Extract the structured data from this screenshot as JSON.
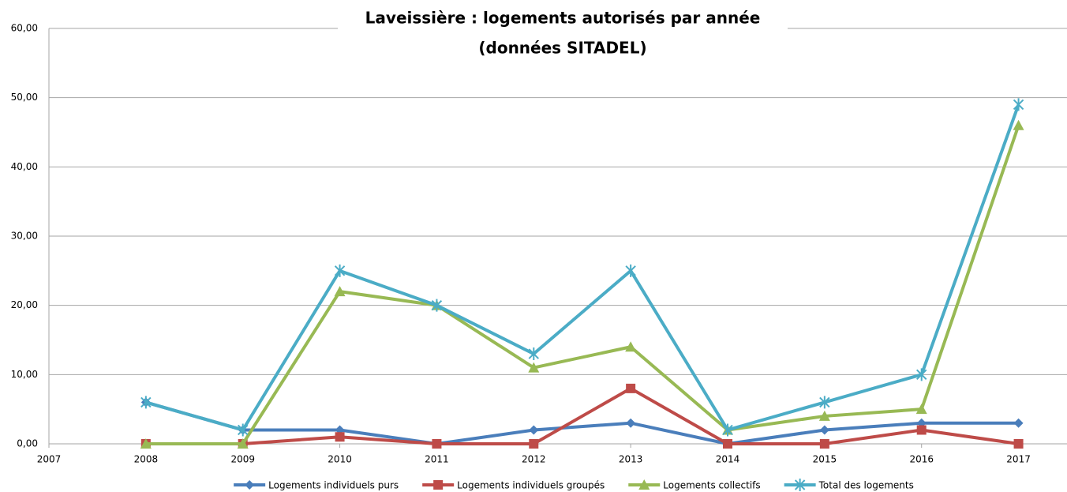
{
  "chart_data": {
    "type": "line",
    "title": [
      "Laveissière : logements autorisés par année",
      "(données SITADEL)"
    ],
    "x": [
      2008,
      2009,
      2010,
      2011,
      2012,
      2013,
      2014,
      2015,
      2016,
      2017
    ],
    "xlim": [
      2007,
      2017.5
    ],
    "xticks": [
      2007,
      2008,
      2009,
      2010,
      2011,
      2012,
      2013,
      2014,
      2015,
      2016,
      2017
    ],
    "ylim": [
      0,
      60
    ],
    "yticks": [
      {
        "value": 0,
        "label": "0,00"
      },
      {
        "value": 10,
        "label": "10,00"
      },
      {
        "value": 20,
        "label": "20,00"
      },
      {
        "value": 30,
        "label": "30,00"
      },
      {
        "value": 40,
        "label": "40,00"
      },
      {
        "value": 50,
        "label": "50,00"
      },
      {
        "value": 60,
        "label": "60,00"
      }
    ],
    "grid": true,
    "legend": "bottom",
    "series": [
      {
        "name": "Logements individuels purs",
        "color": "#4a7ebb",
        "marker": "diamond",
        "values": [
          6,
          2,
          2,
          0,
          2,
          3,
          0,
          2,
          3,
          3
        ]
      },
      {
        "name": "Logements individuels groupés",
        "color": "#be4b48",
        "marker": "square",
        "values": [
          0,
          0,
          1,
          0,
          0,
          8,
          0,
          0,
          2,
          0
        ]
      },
      {
        "name": "Logements collectifs",
        "color": "#98b954",
        "marker": "triangle",
        "values": [
          0,
          0,
          22,
          20,
          11,
          14,
          2,
          4,
          5,
          46
        ]
      },
      {
        "name": "Total des logements",
        "color": "#4bacc6",
        "marker": "star",
        "values": [
          6,
          2,
          25,
          20,
          13,
          25,
          2,
          6,
          10,
          49
        ]
      }
    ]
  }
}
